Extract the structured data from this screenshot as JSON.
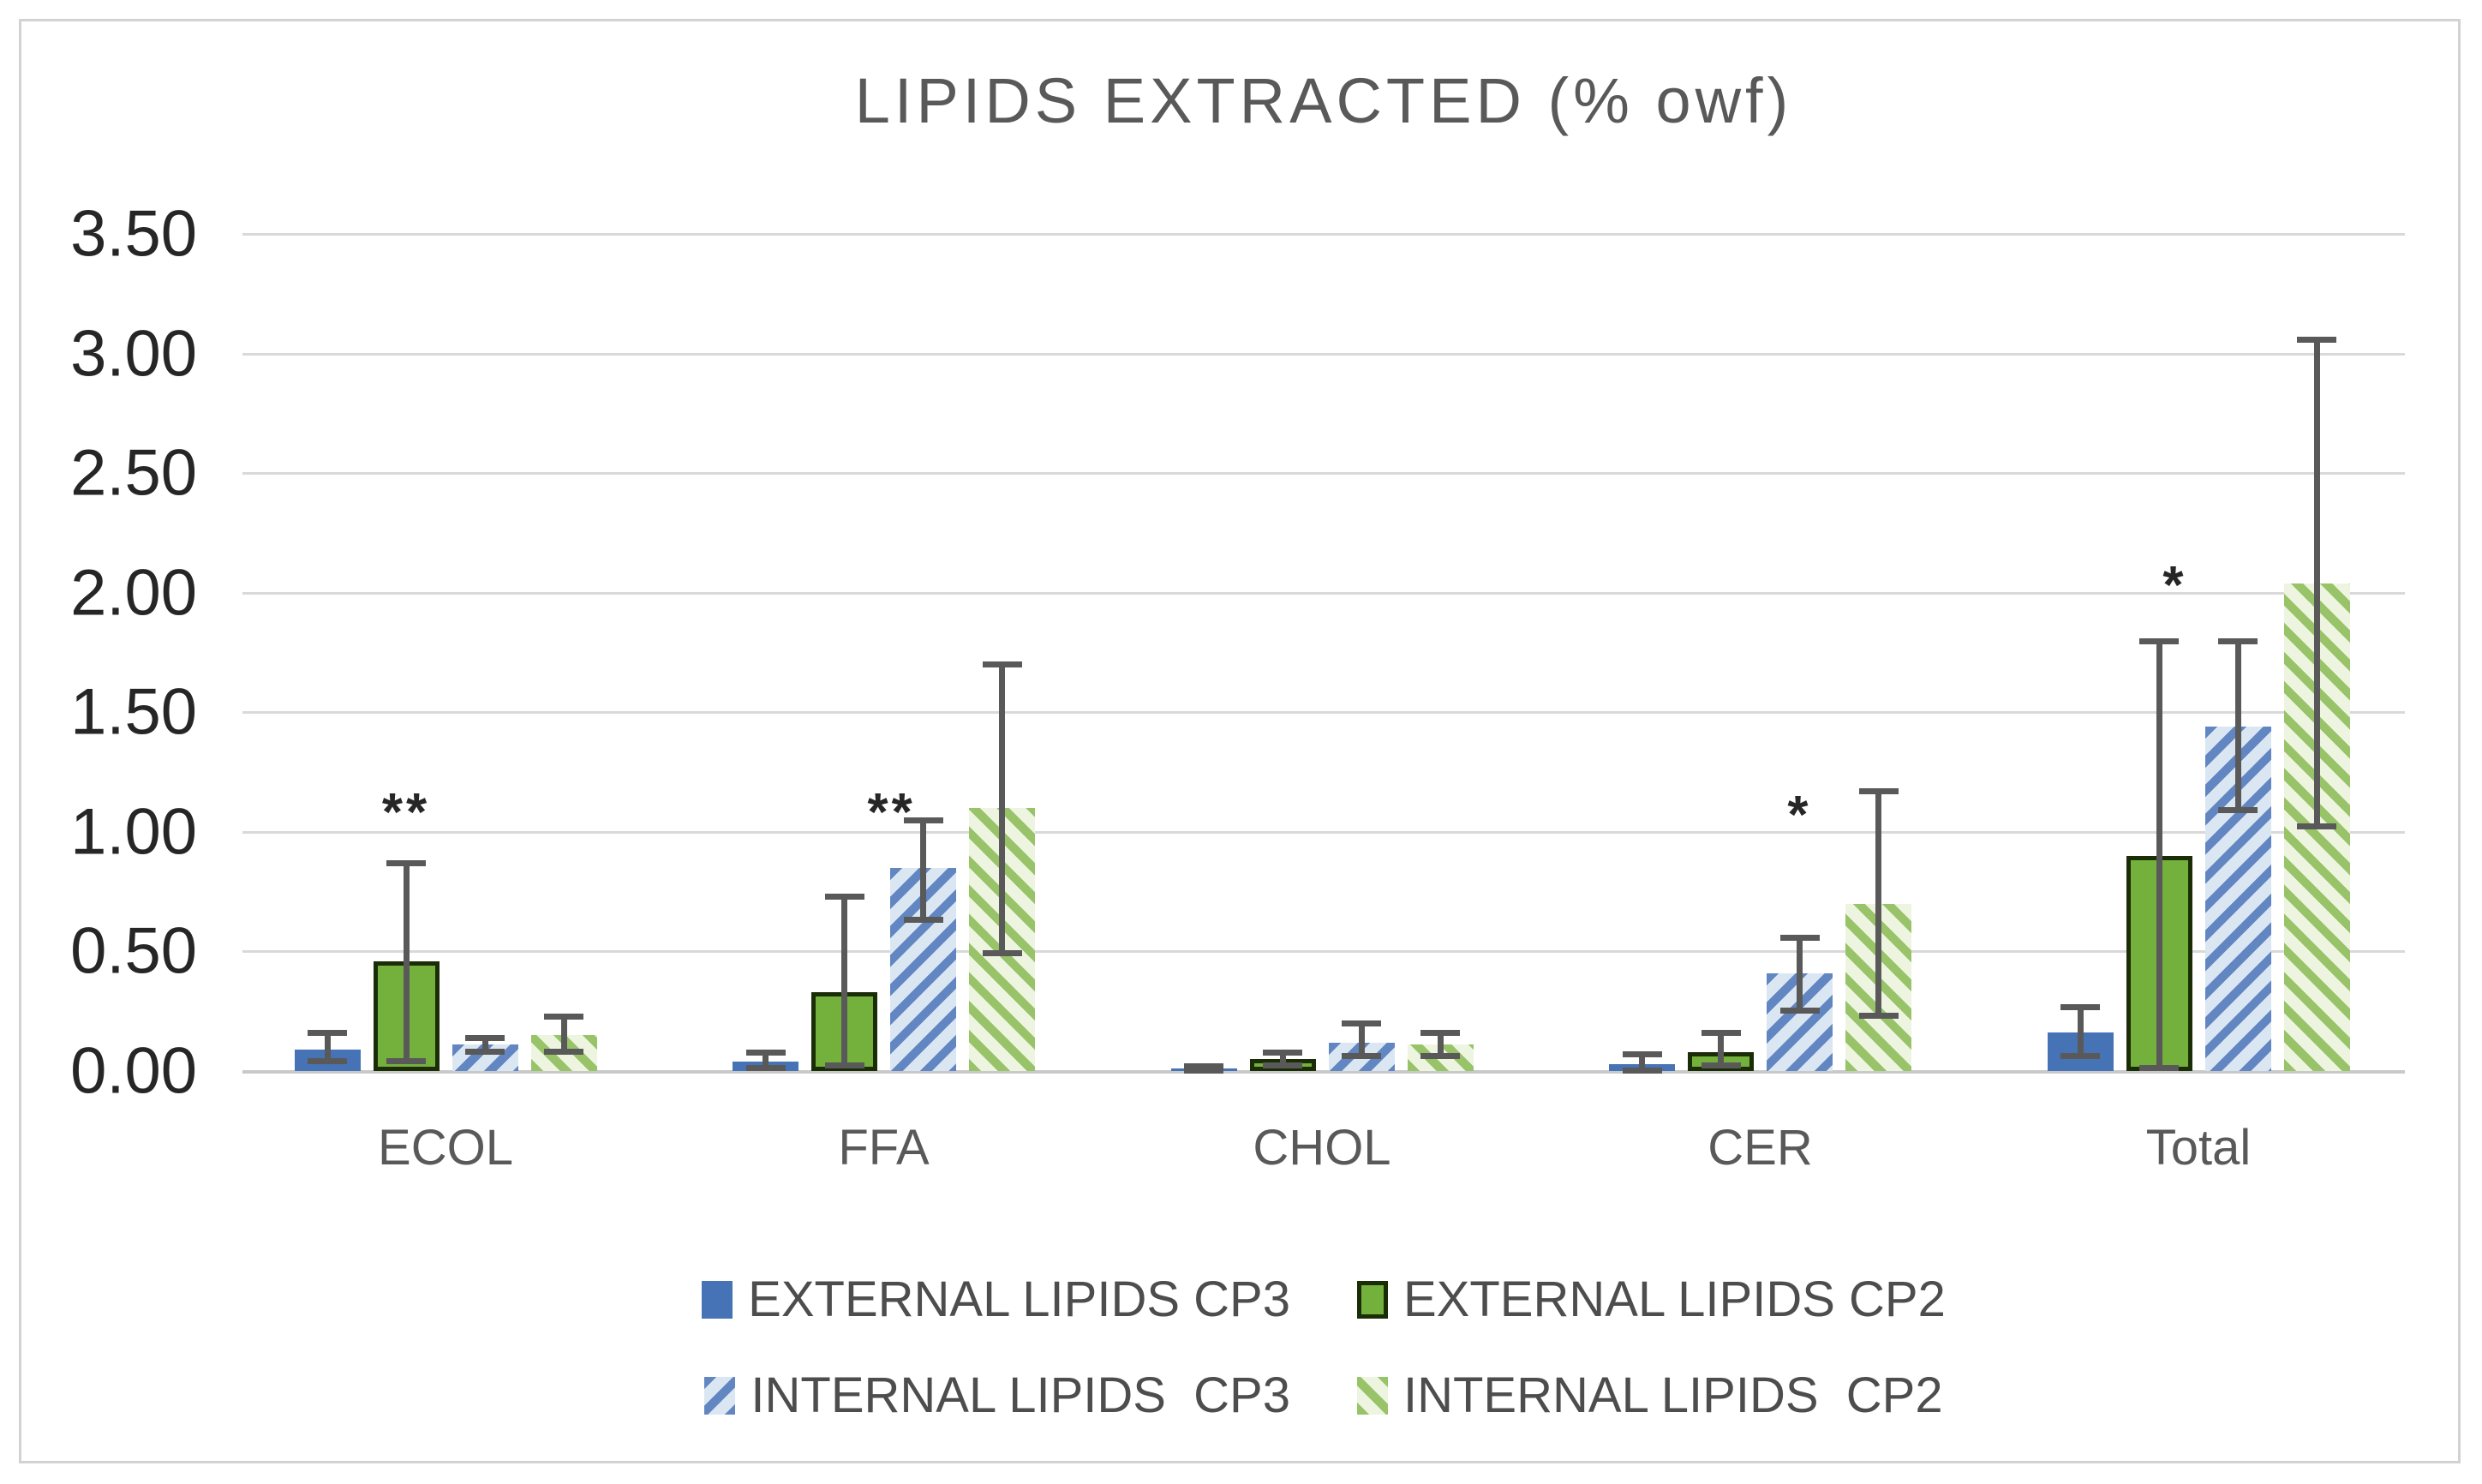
{
  "figure": {
    "background": "#ffffff",
    "border_color": "#d2d2d2"
  },
  "chart_data": {
    "type": "bar",
    "title": "LIPIDS EXTRACTED (% owf)",
    "categories": [
      "ECOL",
      "FFA",
      "CHOL",
      "CER",
      "Total"
    ],
    "y_ticks": [
      "3.50",
      "3.00",
      "2.50",
      "2.00",
      "1.50",
      "1.00",
      "0.50",
      "0.00"
    ],
    "ylim": [
      0,
      3.5
    ],
    "grid": true,
    "gridline_color": "#d9d9d9",
    "error_bar_color": "#595959",
    "legend_position": "bottom",
    "series": [
      {
        "name": "EXTERNAL LIPIDS CP3",
        "style": "solid",
        "color": "#4673b5",
        "values": [
          0.09,
          0.04,
          0.01,
          0.03,
          0.16
        ],
        "error_low": [
          0.04,
          0.01,
          0.0,
          0.0,
          0.06
        ],
        "error_high": [
          0.16,
          0.08,
          0.02,
          0.07,
          0.27
        ]
      },
      {
        "name": "EXTERNAL LIPIDS CP2",
        "style": "solid-bordered",
        "color": "#73b13c",
        "border_color": "#1b2d07",
        "values": [
          0.46,
          0.33,
          0.05,
          0.08,
          0.9
        ],
        "error_low": [
          0.04,
          0.02,
          0.02,
          0.02,
          0.01
        ],
        "error_high": [
          0.87,
          0.73,
          0.08,
          0.16,
          1.8
        ]
      },
      {
        "name": "INTERNAL LIPIDS  CP3",
        "style": "hatch-forward",
        "bg": "#dbe6f3",
        "stripe": "#6286c2",
        "values": [
          0.11,
          0.85,
          0.12,
          0.41,
          1.44
        ],
        "error_low": [
          0.08,
          0.63,
          0.06,
          0.25,
          1.09
        ],
        "error_high": [
          0.14,
          1.05,
          0.2,
          0.56,
          1.8
        ]
      },
      {
        "name": "INTERNAL LIPIDS  CP2",
        "style": "hatch-back",
        "bg": "#edf5e1",
        "stripe": "#98c368",
        "values": [
          0.15,
          1.1,
          0.11,
          0.7,
          2.04
        ],
        "error_low": [
          0.08,
          0.49,
          0.06,
          0.23,
          1.02
        ],
        "error_high": [
          0.23,
          1.7,
          0.16,
          1.17,
          3.06
        ]
      }
    ],
    "significance": [
      {
        "category": "ECOL",
        "label": "**",
        "bar_pos": 1.0,
        "y": 1.06
      },
      {
        "category": "FFA",
        "label": "**",
        "bar_pos": 1.6,
        "y": 1.06
      },
      {
        "category": "CER",
        "label": "*",
        "bar_pos": 2.0,
        "y": 1.05
      },
      {
        "category": "Total",
        "label": "*",
        "bar_pos": 1.2,
        "y": 2.01
      }
    ]
  }
}
